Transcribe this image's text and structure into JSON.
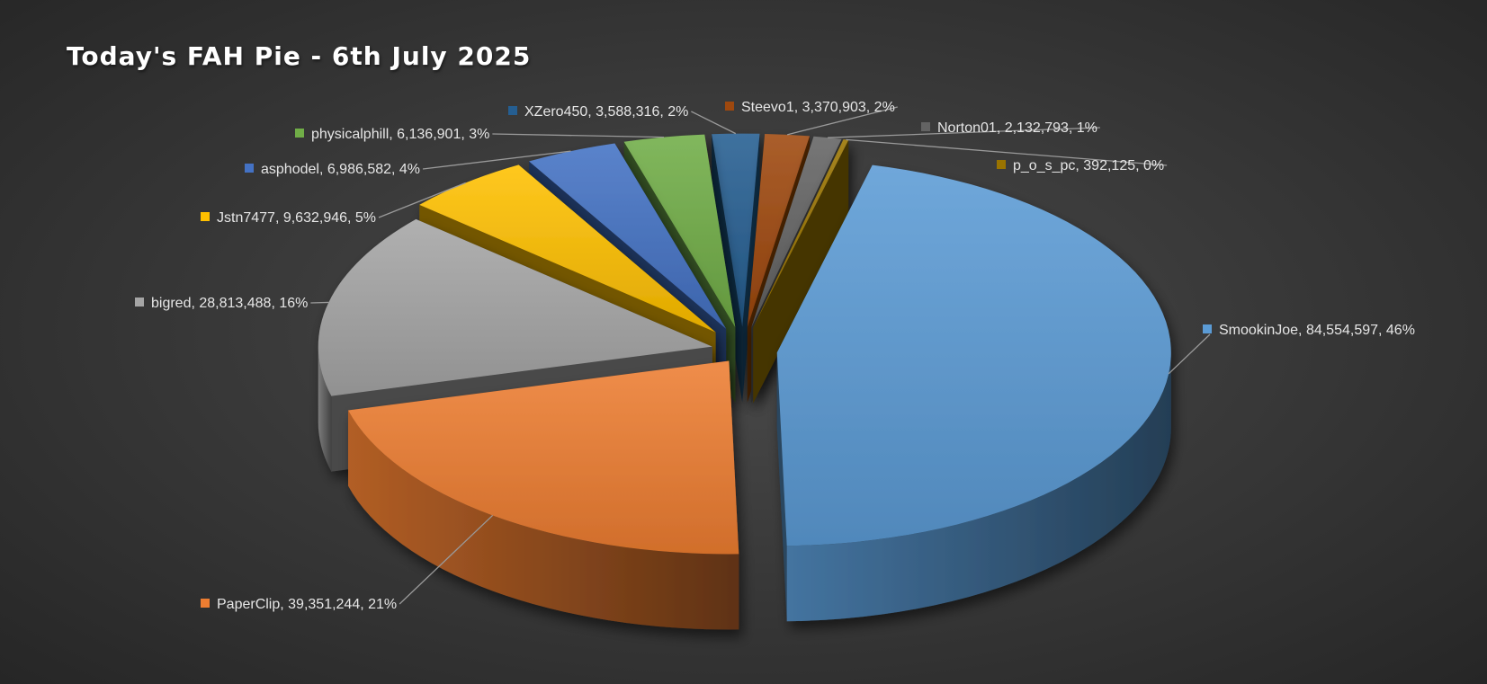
{
  "title": "Today's FAH Pie - 6th July 2025",
  "chart_data": {
    "type": "pie",
    "style": "exploded-3d",
    "title": "Today's FAH Pie - 6th July 2025",
    "legend": "none",
    "data_labels": "category, value, percent",
    "slices": [
      {
        "name": "SmookinJoe",
        "value": 84554597,
        "percent": "46%",
        "label": "SmookinJoe, 84,554,597, 46%",
        "color": "#5B9BD5"
      },
      {
        "name": "PaperClip",
        "value": 39351244,
        "percent": "21%",
        "label": "PaperClip, 39,351,244, 21%",
        "color": "#ED7D31"
      },
      {
        "name": "bigred",
        "value": 28813488,
        "percent": "16%",
        "label": "bigred, 28,813,488, 16%",
        "color": "#A5A5A5"
      },
      {
        "name": "Jstn7477",
        "value": 9632946,
        "percent": "5%",
        "label": "Jstn7477, 9,632,946, 5%",
        "color": "#FFC000"
      },
      {
        "name": "asphodel",
        "value": 6986582,
        "percent": "4%",
        "label": "asphodel, 6,986,582, 4%",
        "color": "#4472C4"
      },
      {
        "name": "physicalphill",
        "value": 6136901,
        "percent": "3%",
        "label": "physicalphill, 6,136,901, 3%",
        "color": "#70AD47"
      },
      {
        "name": "XZero450",
        "value": 3588316,
        "percent": "2%",
        "label": "XZero450, 3,588,316, 2%",
        "color": "#255E91"
      },
      {
        "name": "Steevo1",
        "value": 3370903,
        "percent": "2%",
        "label": "Steevo1, 3,370,903, 2%",
        "color": "#9E480E"
      },
      {
        "name": "Norton01",
        "value": 2132793,
        "percent": "1%",
        "label": "Norton01, 2,132,793, 1%",
        "color": "#636363"
      },
      {
        "name": "p_o_s_pc",
        "value": 392125,
        "percent": "0%",
        "label": "p_o_s_pc, 392,125, 0%",
        "color": "#997300"
      }
    ]
  }
}
